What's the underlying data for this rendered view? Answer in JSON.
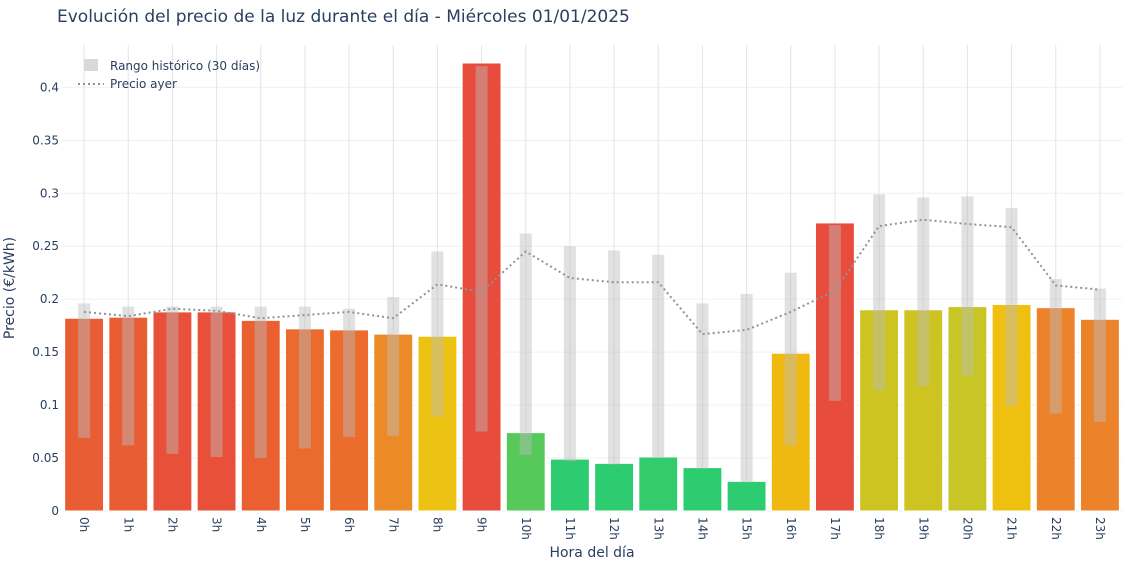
{
  "chart_data": {
    "type": "bar",
    "title": "Evolución del precio de la luz durante el día - Miércoles 01/01/2025",
    "xlabel": "Hora del día",
    "ylabel": "Precio (€/kWh)",
    "ylim": [
      0,
      0.44
    ],
    "yticks": [
      0,
      0.05,
      0.1,
      0.15,
      0.2,
      0.25,
      0.3,
      0.35,
      0.4
    ],
    "ytick_labels": [
      "0",
      "0.05",
      "0.1",
      "0.15",
      "0.2",
      "0.25",
      "0.3",
      "0.35",
      "0.4"
    ],
    "grid": true,
    "legend_position": "top-left",
    "categories": [
      "0h",
      "1h",
      "2h",
      "3h",
      "4h",
      "5h",
      "6h",
      "7h",
      "8h",
      "9h",
      "10h",
      "11h",
      "12h",
      "13h",
      "14h",
      "15h",
      "16h",
      "17h",
      "18h",
      "19h",
      "20h",
      "21h",
      "22h",
      "23h"
    ],
    "values": [
      0.182,
      0.183,
      0.188,
      0.188,
      0.18,
      0.172,
      0.171,
      0.167,
      0.165,
      0.423,
      0.074,
      0.049,
      0.045,
      0.051,
      0.041,
      0.028,
      0.149,
      0.272,
      0.19,
      0.19,
      0.193,
      0.195,
      0.192,
      0.181
    ],
    "bar_colors": [
      "#e95d34",
      "#e95d34",
      "#e8503a",
      "#e8503a",
      "#ea6030",
      "#eb6a2d",
      "#eb6c2c",
      "#ec8a27",
      "#ecc312",
      "#e74c3c",
      "#56c95a",
      "#2ecc71",
      "#2ecc71",
      "#33cb6b",
      "#2ecc71",
      "#2ecc71",
      "#f0b912",
      "#e74c3c",
      "#cdc421",
      "#cdc421",
      "#c7c626",
      "#f0c010",
      "#ec822a",
      "#ec822a"
    ],
    "series": [
      {
        "name": "Rango histórico (30 días)",
        "type": "range",
        "color": "#d9d9d9",
        "low": [
          0.069,
          0.062,
          0.054,
          0.051,
          0.05,
          0.059,
          0.07,
          0.071,
          0.089,
          0.075,
          0.053,
          0.047,
          0.044,
          0.05,
          0.04,
          0.027,
          0.062,
          0.104,
          0.114,
          0.118,
          0.128,
          0.099,
          0.092,
          0.084
        ],
        "high": [
          0.196,
          0.193,
          0.193,
          0.193,
          0.193,
          0.193,
          0.191,
          0.202,
          0.245,
          0.42,
          0.262,
          0.25,
          0.246,
          0.242,
          0.196,
          0.205,
          0.225,
          0.27,
          0.299,
          0.296,
          0.297,
          0.286,
          0.219,
          0.21
        ]
      },
      {
        "name": "Precio ayer",
        "type": "line",
        "style": "dotted",
        "color": "#8c9499",
        "values": [
          0.188,
          0.184,
          0.191,
          0.189,
          0.182,
          0.185,
          0.188,
          0.182,
          0.214,
          0.207,
          0.245,
          0.22,
          0.216,
          0.216,
          0.167,
          0.171,
          0.188,
          0.208,
          0.269,
          0.275,
          0.271,
          0.268,
          0.213,
          0.209
        ]
      }
    ]
  }
}
